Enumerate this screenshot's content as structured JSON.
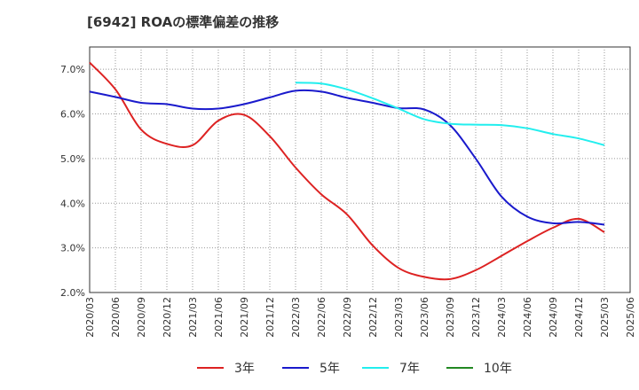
{
  "chart_data": {
    "type": "line",
    "title": "[6942]  ROAの標準偏差の推移",
    "xlabel": "",
    "ylabel": "",
    "x": [
      "2020/03",
      "2020/06",
      "2020/09",
      "2020/12",
      "2021/03",
      "2021/06",
      "2021/09",
      "2021/12",
      "2022/03",
      "2022/06",
      "2022/09",
      "2022/12",
      "2023/03",
      "2023/06",
      "2023/09",
      "2023/12",
      "2024/03",
      "2024/06",
      "2024/09",
      "2024/12",
      "2025/03",
      "2025/06"
    ],
    "ylim": [
      2.0,
      7.5
    ],
    "yticks": [
      2.0,
      3.0,
      4.0,
      5.0,
      6.0,
      7.0
    ],
    "ytick_labels": [
      "2.0%",
      "3.0%",
      "4.0%",
      "5.0%",
      "6.0%",
      "7.0%"
    ],
    "grid": true,
    "legend_position": "bottom",
    "series": [
      {
        "name": "3年",
        "color": "#dd2222",
        "values": [
          7.15,
          6.55,
          5.65,
          5.33,
          5.3,
          5.85,
          5.98,
          5.5,
          4.8,
          4.2,
          3.75,
          3.05,
          2.55,
          2.35,
          2.3,
          2.5,
          2.82,
          3.15,
          3.45,
          3.65,
          3.35,
          null
        ]
      },
      {
        "name": "5年",
        "color": "#1a1acc",
        "values": [
          6.5,
          6.38,
          6.25,
          6.22,
          6.12,
          6.12,
          6.22,
          6.37,
          6.52,
          6.5,
          6.36,
          6.25,
          6.13,
          6.1,
          5.75,
          5.0,
          4.15,
          3.7,
          3.55,
          3.58,
          3.52,
          null
        ]
      },
      {
        "name": "7年",
        "color": "#22eeee",
        "values": [
          null,
          null,
          null,
          null,
          null,
          null,
          null,
          null,
          6.7,
          6.68,
          6.55,
          6.35,
          6.12,
          5.88,
          5.78,
          5.76,
          5.75,
          5.68,
          5.55,
          5.45,
          5.3,
          null
        ]
      },
      {
        "name": "10年",
        "color": "#228822",
        "values": [
          null,
          null,
          null,
          null,
          null,
          null,
          null,
          null,
          null,
          null,
          null,
          null,
          null,
          null,
          null,
          null,
          null,
          null,
          null,
          null,
          null,
          null
        ]
      }
    ]
  }
}
